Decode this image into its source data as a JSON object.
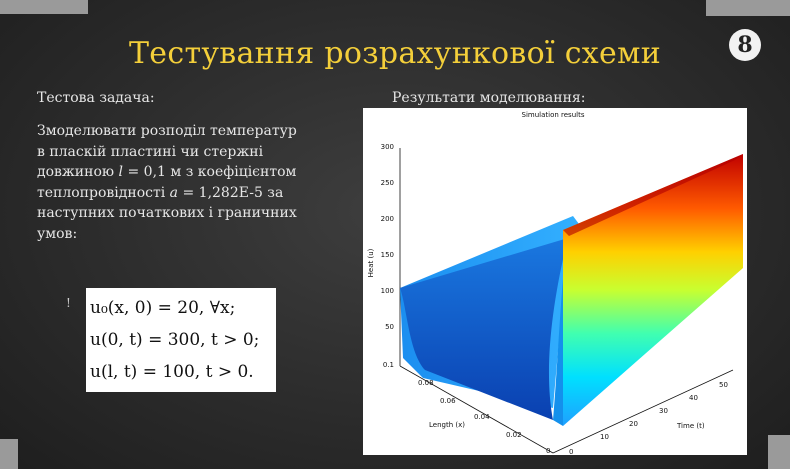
{
  "slide": {
    "title": "Тестування розрахункової схеми",
    "page_number": "8",
    "left_label": "Тестова задача:",
    "right_label": "Результати моделювання:"
  },
  "task": {
    "line1": "Змоделювати розподіл температур",
    "line2": "в пласкій  пластині чи стержні",
    "line3_a": "довжиною ",
    "line3_var": "l",
    "line3_b": " = 0,1 м з коефіцієнтом",
    "line4_a": "теплопровідності ",
    "line4_var": "a",
    "line4_b": " = 1,282E-5 за",
    "line5": "наступних початкових і граничних",
    "line6": "умов:",
    "mark": "!"
  },
  "formulas": [
    "u₀(x, 0) = 20, ∀x;",
    "u(0, t) = 300, t > 0;",
    "u(l, t) = 100, t > 0."
  ],
  "chart_data": {
    "type": "surface",
    "title": "Simulation results",
    "zlabel": "Heat (u)",
    "xlabel": "Length (x)",
    "ylabel": "Time (t)",
    "z_ticks": [
      "300",
      "250",
      "200",
      "150",
      "100",
      "50",
      "0.1"
    ],
    "x_ticks": [
      "0.08",
      "0.06",
      "0.04",
      "0.02",
      "0"
    ],
    "t_ticks": [
      "0",
      "10",
      "20",
      "30",
      "40",
      "50"
    ],
    "boundary_left": 300,
    "boundary_right": 100,
    "initial": 20,
    "colormap": [
      "#0000a0",
      "#0060ff",
      "#00c0ff",
      "#40ffc0",
      "#c0ff40",
      "#ffd000",
      "#ff5000",
      "#b00000"
    ]
  }
}
